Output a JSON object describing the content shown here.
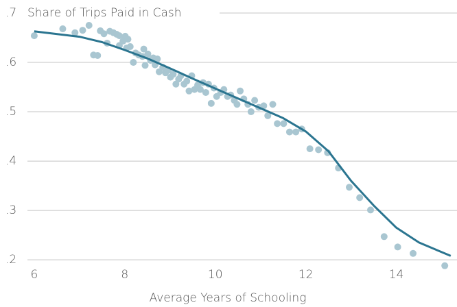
{
  "chart_data": {
    "type": "scatter",
    "title": "Share of Trips Paid in Cash",
    "xlabel": "Average Years of Schooling",
    "xlim": [
      5.85,
      15.34
    ],
    "ylim": [
      0.178,
      0.7
    ],
    "xticks": [
      6,
      8,
      10,
      12,
      14
    ],
    "yticks": [
      {
        "value": 0.7,
        "label": ".7"
      },
      {
        "value": 0.6,
        "label": ".6"
      },
      {
        "value": 0.5,
        "label": ".5"
      },
      {
        "value": 0.4,
        "label": ".4"
      },
      {
        "value": 0.3,
        "label": ".3"
      },
      {
        "value": 0.2,
        "label": ".2"
      }
    ],
    "grid": true,
    "points": {
      "color": "#a9c6d1",
      "x": [
        6.0,
        6.63,
        6.9,
        7.07,
        7.21,
        7.31,
        7.4,
        7.46,
        7.54,
        7.61,
        7.67,
        7.75,
        7.82,
        7.88,
        7.88,
        7.96,
        8.01,
        8.07,
        8.04,
        8.12,
        8.19,
        8.24,
        8.31,
        8.39,
        8.42,
        8.45,
        8.51,
        8.57,
        8.63,
        8.67,
        8.72,
        8.76,
        8.84,
        8.9,
        8.96,
        9.01,
        9.07,
        9.13,
        9.19,
        9.24,
        9.31,
        9.37,
        9.42,
        9.48,
        9.54,
        9.61,
        9.67,
        9.73,
        9.79,
        9.85,
        9.91,
        9.97,
        10.03,
        10.12,
        10.19,
        10.27,
        10.34,
        10.42,
        10.48,
        10.55,
        10.63,
        10.72,
        10.79,
        10.87,
        10.96,
        11.07,
        11.16,
        11.27,
        11.37,
        11.51,
        11.64,
        11.78,
        11.91,
        12.09,
        12.28,
        12.48,
        12.72,
        12.96,
        13.19,
        13.43,
        13.73,
        14.03,
        14.37,
        15.07
      ],
      "y": [
        0.654,
        0.668,
        0.66,
        0.665,
        0.675,
        0.615,
        0.614,
        0.664,
        0.658,
        0.639,
        0.663,
        0.66,
        0.657,
        0.654,
        0.634,
        0.643,
        0.653,
        0.647,
        0.629,
        0.632,
        0.6,
        0.619,
        0.615,
        0.612,
        0.627,
        0.594,
        0.617,
        0.604,
        0.609,
        0.595,
        0.607,
        0.581,
        0.59,
        0.579,
        0.584,
        0.57,
        0.576,
        0.556,
        0.566,
        0.573,
        0.556,
        0.562,
        0.542,
        0.573,
        0.545,
        0.554,
        0.545,
        0.559,
        0.539,
        0.556,
        0.517,
        0.548,
        0.531,
        0.539,
        0.545,
        0.531,
        0.534,
        0.523,
        0.515,
        0.542,
        0.526,
        0.515,
        0.5,
        0.523,
        0.509,
        0.512,
        0.492,
        0.515,
        0.476,
        0.476,
        0.459,
        0.459,
        0.465,
        0.425,
        0.423,
        0.417,
        0.386,
        0.347,
        0.326,
        0.301,
        0.247,
        0.226,
        0.213,
        0.188
      ]
    },
    "fit": {
      "color": "#2b7590",
      "x": [
        6,
        7,
        7.5,
        8,
        8.5,
        9,
        9.5,
        10,
        10.5,
        11,
        11.5,
        12,
        12.5,
        13,
        13.5,
        14,
        14.5,
        15.2
      ],
      "y": [
        0.663,
        0.652,
        0.641,
        0.625,
        0.608,
        0.588,
        0.567,
        0.547,
        0.527,
        0.507,
        0.487,
        0.46,
        0.42,
        0.36,
        0.31,
        0.265,
        0.235,
        0.208
      ]
    }
  }
}
